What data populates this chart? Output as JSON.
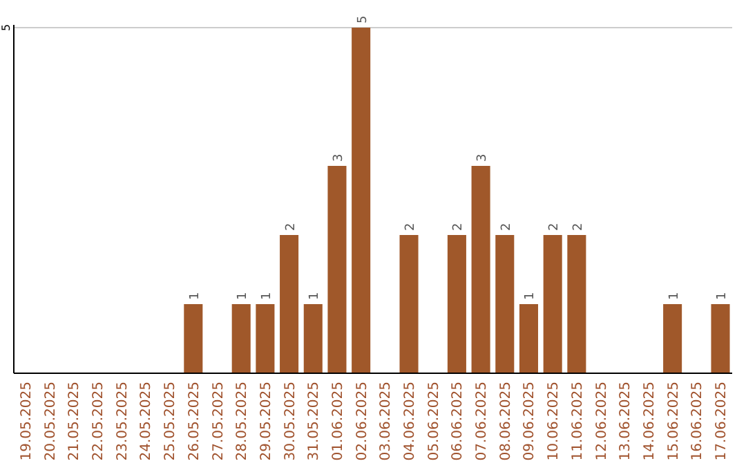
{
  "chart_data": {
    "type": "bar",
    "categories": [
      "19.05.2025",
      "20.05.2025",
      "21.05.2025",
      "22.05.2025",
      "23.05.2025",
      "24.05.2025",
      "25.05.2025",
      "26.05.2025",
      "27.05.2025",
      "28.05.2025",
      "29.05.2025",
      "30.05.2025",
      "31.05.2025",
      "01.06.2025",
      "02.06.2025",
      "03.06.2025",
      "04.06.2025",
      "05.06.2025",
      "06.06.2025",
      "07.06.2025",
      "08.06.2025",
      "09.06.2025",
      "10.06.2025",
      "11.06.2025",
      "12.06.2025",
      "13.06.2025",
      "14.06.2025",
      "15.06.2025",
      "16.06.2025",
      "17.06.2025"
    ],
    "values": [
      0,
      0,
      0,
      0,
      0,
      0,
      0,
      1,
      0,
      1,
      1,
      2,
      1,
      3,
      5,
      0,
      2,
      0,
      2,
      3,
      2,
      1,
      2,
      2,
      0,
      0,
      0,
      1,
      0,
      1
    ],
    "value_labels": [
      null,
      null,
      null,
      null,
      null,
      null,
      null,
      "1",
      null,
      "1",
      "1",
      "2",
      "1",
      "3",
      "5",
      null,
      "2",
      null,
      "2",
      "3",
      "2",
      "1",
      "2",
      "2",
      null,
      null,
      null,
      "1",
      null,
      "1"
    ],
    "color": "#a0582a",
    "ylim": [
      0,
      5
    ],
    "yticks": [
      5
    ]
  }
}
